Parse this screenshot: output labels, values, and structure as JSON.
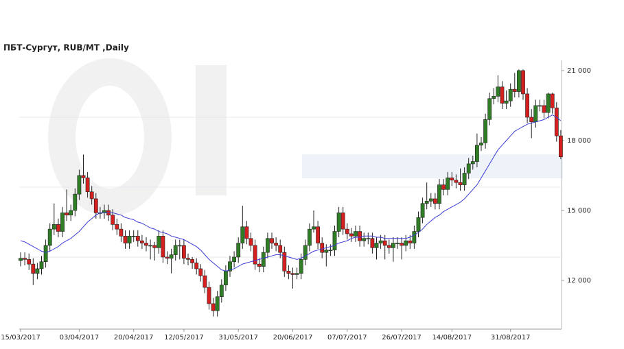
{
  "chart_data": {
    "type": "candlestick",
    "title": "ПБТ-Сургут,  RUB/MT ,Daily",
    "categories": [
      "15/03/2017",
      null,
      null,
      null,
      null,
      null,
      null,
      null,
      null,
      null,
      null,
      null,
      null,
      null,
      "03/04/2017",
      null,
      null,
      null,
      null,
      null,
      null,
      null,
      null,
      null,
      null,
      null,
      null,
      "20/04/2017",
      null,
      null,
      null,
      null,
      null,
      null,
      null,
      null,
      null,
      null,
      null,
      "12/05/2017",
      null,
      null,
      null,
      null,
      null,
      null,
      null,
      null,
      null,
      null,
      null,
      null,
      "31/05/2017",
      null,
      null,
      null,
      null,
      null,
      null,
      null,
      null,
      null,
      null,
      null,
      null,
      "20/06/2017",
      null,
      null,
      null,
      null,
      null,
      null,
      null,
      null,
      null,
      null,
      null,
      null,
      "07/07/2017",
      null,
      null,
      null,
      null,
      null,
      null,
      null,
      null,
      null,
      null,
      null,
      null,
      "26/07/2017",
      null,
      null,
      null,
      null,
      null,
      null,
      null,
      null,
      null,
      null,
      null,
      "14/08/2017",
      null,
      null,
      null,
      null,
      null,
      null,
      null,
      null,
      null,
      null,
      null,
      null,
      null,
      "31/08/2017",
      null,
      null,
      null,
      null,
      null,
      null,
      null,
      null,
      null,
      null,
      null,
      null
    ],
    "candles": [
      [
        12850,
        13200,
        12600,
        12950
      ],
      [
        12950,
        13200,
        12650,
        12900
      ],
      [
        12900,
        13150,
        12450,
        12700
      ],
      [
        12700,
        12950,
        11800,
        12300
      ],
      [
        12300,
        12750,
        12050,
        12500
      ],
      [
        12500,
        13050,
        12250,
        12800
      ],
      [
        12800,
        13750,
        12550,
        13500
      ],
      [
        13500,
        14450,
        13250,
        14200
      ],
      [
        14200,
        15300,
        13950,
        14400
      ],
      [
        14400,
        14650,
        13850,
        14100
      ],
      [
        14100,
        15150,
        13850,
        14900
      ],
      [
        14900,
        15900,
        14550,
        14800
      ],
      [
        14800,
        15250,
        14550,
        15000
      ],
      [
        15000,
        15950,
        14750,
        15700
      ],
      [
        15700,
        16750,
        15450,
        16500
      ],
      [
        16500,
        17400,
        16150,
        16400
      ],
      [
        16400,
        16650,
        15550,
        15800
      ],
      [
        15800,
        16050,
        15250,
        15500
      ],
      [
        15500,
        15750,
        14650,
        14900
      ],
      [
        14900,
        15150,
        14650,
        14900
      ],
      [
        14900,
        15250,
        14650,
        15000
      ],
      [
        15000,
        15250,
        14550,
        14800
      ],
      [
        14800,
        15050,
        14150,
        14400
      ],
      [
        14400,
        14650,
        13950,
        14200
      ],
      [
        14200,
        14450,
        13650,
        13900
      ],
      [
        13900,
        14150,
        13350,
        13600
      ],
      [
        13600,
        14150,
        13350,
        13900
      ],
      [
        13900,
        14150,
        13650,
        13900
      ],
      [
        13900,
        14150,
        13450,
        13700
      ],
      [
        13700,
        13950,
        13350,
        13600
      ],
      [
        13600,
        13850,
        13250,
        13500
      ],
      [
        13500,
        13750,
        12900,
        13500
      ],
      [
        13500,
        13650,
        12850,
        13400
      ],
      [
        13400,
        14150,
        13150,
        13900
      ],
      [
        13900,
        14150,
        12750,
        13000
      ],
      [
        13000,
        13250,
        12700,
        12950
      ],
      [
        12950,
        13350,
        12300,
        13100
      ],
      [
        13100,
        13750,
        12850,
        13500
      ],
      [
        13500,
        13750,
        12900,
        13500
      ],
      [
        13500,
        13750,
        12700,
        12950
      ],
      [
        12950,
        13150,
        12650,
        12900
      ],
      [
        12900,
        13000,
        12500,
        12750
      ],
      [
        12750,
        12950,
        12250,
        12500
      ],
      [
        12500,
        12700,
        11950,
        12200
      ],
      [
        12200,
        12450,
        11450,
        11700
      ],
      [
        11700,
        11950,
        10750,
        11000
      ],
      [
        11000,
        11250,
        10450,
        10700
      ],
      [
        10700,
        11550,
        10450,
        11300
      ],
      [
        11300,
        12050,
        11050,
        11800
      ],
      [
        11800,
        12650,
        11550,
        12400
      ],
      [
        12400,
        13050,
        12150,
        12800
      ],
      [
        12800,
        13250,
        12550,
        13000
      ],
      [
        13000,
        13850,
        12750,
        13600
      ],
      [
        13600,
        15200,
        13350,
        14300
      ],
      [
        14300,
        14550,
        13550,
        13800
      ],
      [
        13800,
        14050,
        13250,
        13500
      ],
      [
        13500,
        13750,
        12450,
        12700
      ],
      [
        12700,
        12950,
        12350,
        12600
      ],
      [
        12600,
        13450,
        12350,
        13200
      ],
      [
        13200,
        14050,
        12950,
        13800
      ],
      [
        13800,
        14050,
        13350,
        13600
      ],
      [
        13600,
        13850,
        13250,
        13500
      ],
      [
        13500,
        13750,
        12950,
        13200
      ],
      [
        13200,
        13450,
        12150,
        12400
      ],
      [
        12400,
        12650,
        12050,
        12300
      ],
      [
        12300,
        12550,
        11650,
        12250
      ],
      [
        12250,
        12550,
        12050,
        12300
      ],
      [
        12300,
        13150,
        12050,
        12900
      ],
      [
        12900,
        13750,
        12650,
        13500
      ],
      [
        13500,
        14450,
        13250,
        14200
      ],
      [
        14200,
        15000,
        14050,
        14300
      ],
      [
        14300,
        14550,
        13350,
        13600
      ],
      [
        13600,
        13850,
        12950,
        13200
      ],
      [
        13200,
        13550,
        12600,
        13300
      ],
      [
        13300,
        13550,
        13050,
        13300
      ],
      [
        13300,
        14350,
        13050,
        14100
      ],
      [
        14100,
        15150,
        13850,
        14900
      ],
      [
        14900,
        15150,
        13950,
        14200
      ],
      [
        14200,
        14450,
        13750,
        14000
      ],
      [
        14000,
        14250,
        13650,
        13900
      ],
      [
        13900,
        14350,
        13650,
        14100
      ],
      [
        14100,
        14350,
        13450,
        13700
      ],
      [
        13700,
        14050,
        13450,
        13800
      ],
      [
        13800,
        14050,
        13550,
        13800
      ],
      [
        13800,
        14050,
        13150,
        13400
      ],
      [
        13400,
        13850,
        12900,
        13600
      ],
      [
        13600,
        13950,
        13350,
        13700
      ],
      [
        13700,
        13950,
        12900,
        13500
      ],
      [
        13500,
        13750,
        13150,
        13400
      ],
      [
        13400,
        13850,
        12800,
        13600
      ],
      [
        13600,
        13850,
        13350,
        13600
      ],
      [
        13600,
        13850,
        12900,
        13500
      ],
      [
        13500,
        13950,
        13250,
        13700
      ],
      [
        13700,
        13950,
        13350,
        13600
      ],
      [
        13600,
        14350,
        13350,
        14100
      ],
      [
        14100,
        14950,
        13850,
        14700
      ],
      [
        14700,
        15550,
        14450,
        15300
      ],
      [
        15300,
        16200,
        15050,
        15400
      ],
      [
        15400,
        15750,
        15150,
        15500
      ],
      [
        15500,
        15750,
        15050,
        15300
      ],
      [
        15300,
        16350,
        15050,
        16100
      ],
      [
        16100,
        16350,
        15650,
        15900
      ],
      [
        15900,
        16650,
        15650,
        16400
      ],
      [
        16400,
        16650,
        16050,
        16300
      ],
      [
        16300,
        16550,
        15950,
        16200
      ],
      [
        16200,
        16800,
        15850,
        16100
      ],
      [
        16100,
        16850,
        15850,
        16600
      ],
      [
        16600,
        17250,
        16350,
        17000
      ],
      [
        17000,
        17350,
        16750,
        17100
      ],
      [
        17100,
        18300,
        16850,
        17800
      ],
      [
        17800,
        18150,
        17550,
        17900
      ],
      [
        17900,
        19150,
        17650,
        18900
      ],
      [
        18900,
        20050,
        18650,
        19800
      ],
      [
        19800,
        20250,
        19550,
        19900
      ],
      [
        19900,
        20800,
        19650,
        20300
      ],
      [
        20300,
        20550,
        19350,
        19600
      ],
      [
        19600,
        20150,
        19350,
        19700
      ],
      [
        19700,
        20450,
        19450,
        20200
      ],
      [
        20200,
        20900,
        19850,
        20100
      ],
      [
        20100,
        21050,
        19850,
        21000
      ],
      [
        21000,
        21050,
        19750,
        20000
      ],
      [
        20000,
        20250,
        18750,
        19000
      ],
      [
        19000,
        19350,
        18100,
        18800
      ],
      [
        18800,
        19750,
        18550,
        19500
      ],
      [
        19500,
        19750,
        19250,
        19500
      ],
      [
        19500,
        19750,
        18950,
        19200
      ],
      [
        19200,
        20050,
        18950,
        20000
      ],
      [
        20000,
        20050,
        19150,
        19400
      ],
      [
        19400,
        19650,
        17950,
        18200
      ],
      [
        18200,
        18450,
        17200,
        17300
      ]
    ],
    "up_color": "#2f7d24",
    "down_color": "#d61f1f",
    "ma": {
      "color": "#3a3ad6",
      "values": [
        13700,
        13650,
        13550,
        13450,
        13350,
        13250,
        13200,
        13250,
        13350,
        13450,
        13600,
        13700,
        13800,
        13950,
        14100,
        14300,
        14500,
        14650,
        14800,
        14900,
        14900,
        14900,
        14900,
        14850,
        14800,
        14700,
        14650,
        14600,
        14500,
        14450,
        14350,
        14250,
        14200,
        14100,
        14050,
        14000,
        13900,
        13850,
        13800,
        13750,
        13650,
        13550,
        13450,
        13300,
        13100,
        12900,
        12750,
        12600,
        12450,
        12400,
        12450,
        12500,
        12600,
        12700,
        12750,
        12800,
        12850,
        12900,
        12950,
        13000,
        13050,
        13100,
        13100,
        13050,
        13000,
        12950,
        12900,
        12950,
        13050,
        13150,
        13250,
        13300,
        13350,
        13400,
        13450,
        13500,
        13600,
        13650,
        13700,
        13800,
        13850,
        13850,
        13900,
        13900,
        13900,
        13850,
        13850,
        13800,
        13800,
        13800,
        13800,
        13800,
        13800,
        13850,
        13950,
        14050,
        14200,
        14400,
        14550,
        14700,
        14800,
        14950,
        15050,
        15150,
        15250,
        15350,
        15500,
        15700,
        15900,
        16100,
        16400,
        16700,
        17000,
        17300,
        17600,
        17800,
        18000,
        18200,
        18400,
        18500,
        18600,
        18700,
        18750,
        18800,
        18850,
        18900,
        19000,
        19100,
        19000,
        18850
      ]
    },
    "ylim": [
      9910,
      21440
    ],
    "yticks": [
      {
        "value": 12000,
        "label": "12 000"
      },
      {
        "value": 15000,
        "label": "15 000"
      },
      {
        "value": 18000,
        "label": "18 000"
      },
      {
        "value": 21000,
        "label": "21 000"
      }
    ],
    "ygrid": [
      13000,
      16000,
      19000
    ]
  }
}
